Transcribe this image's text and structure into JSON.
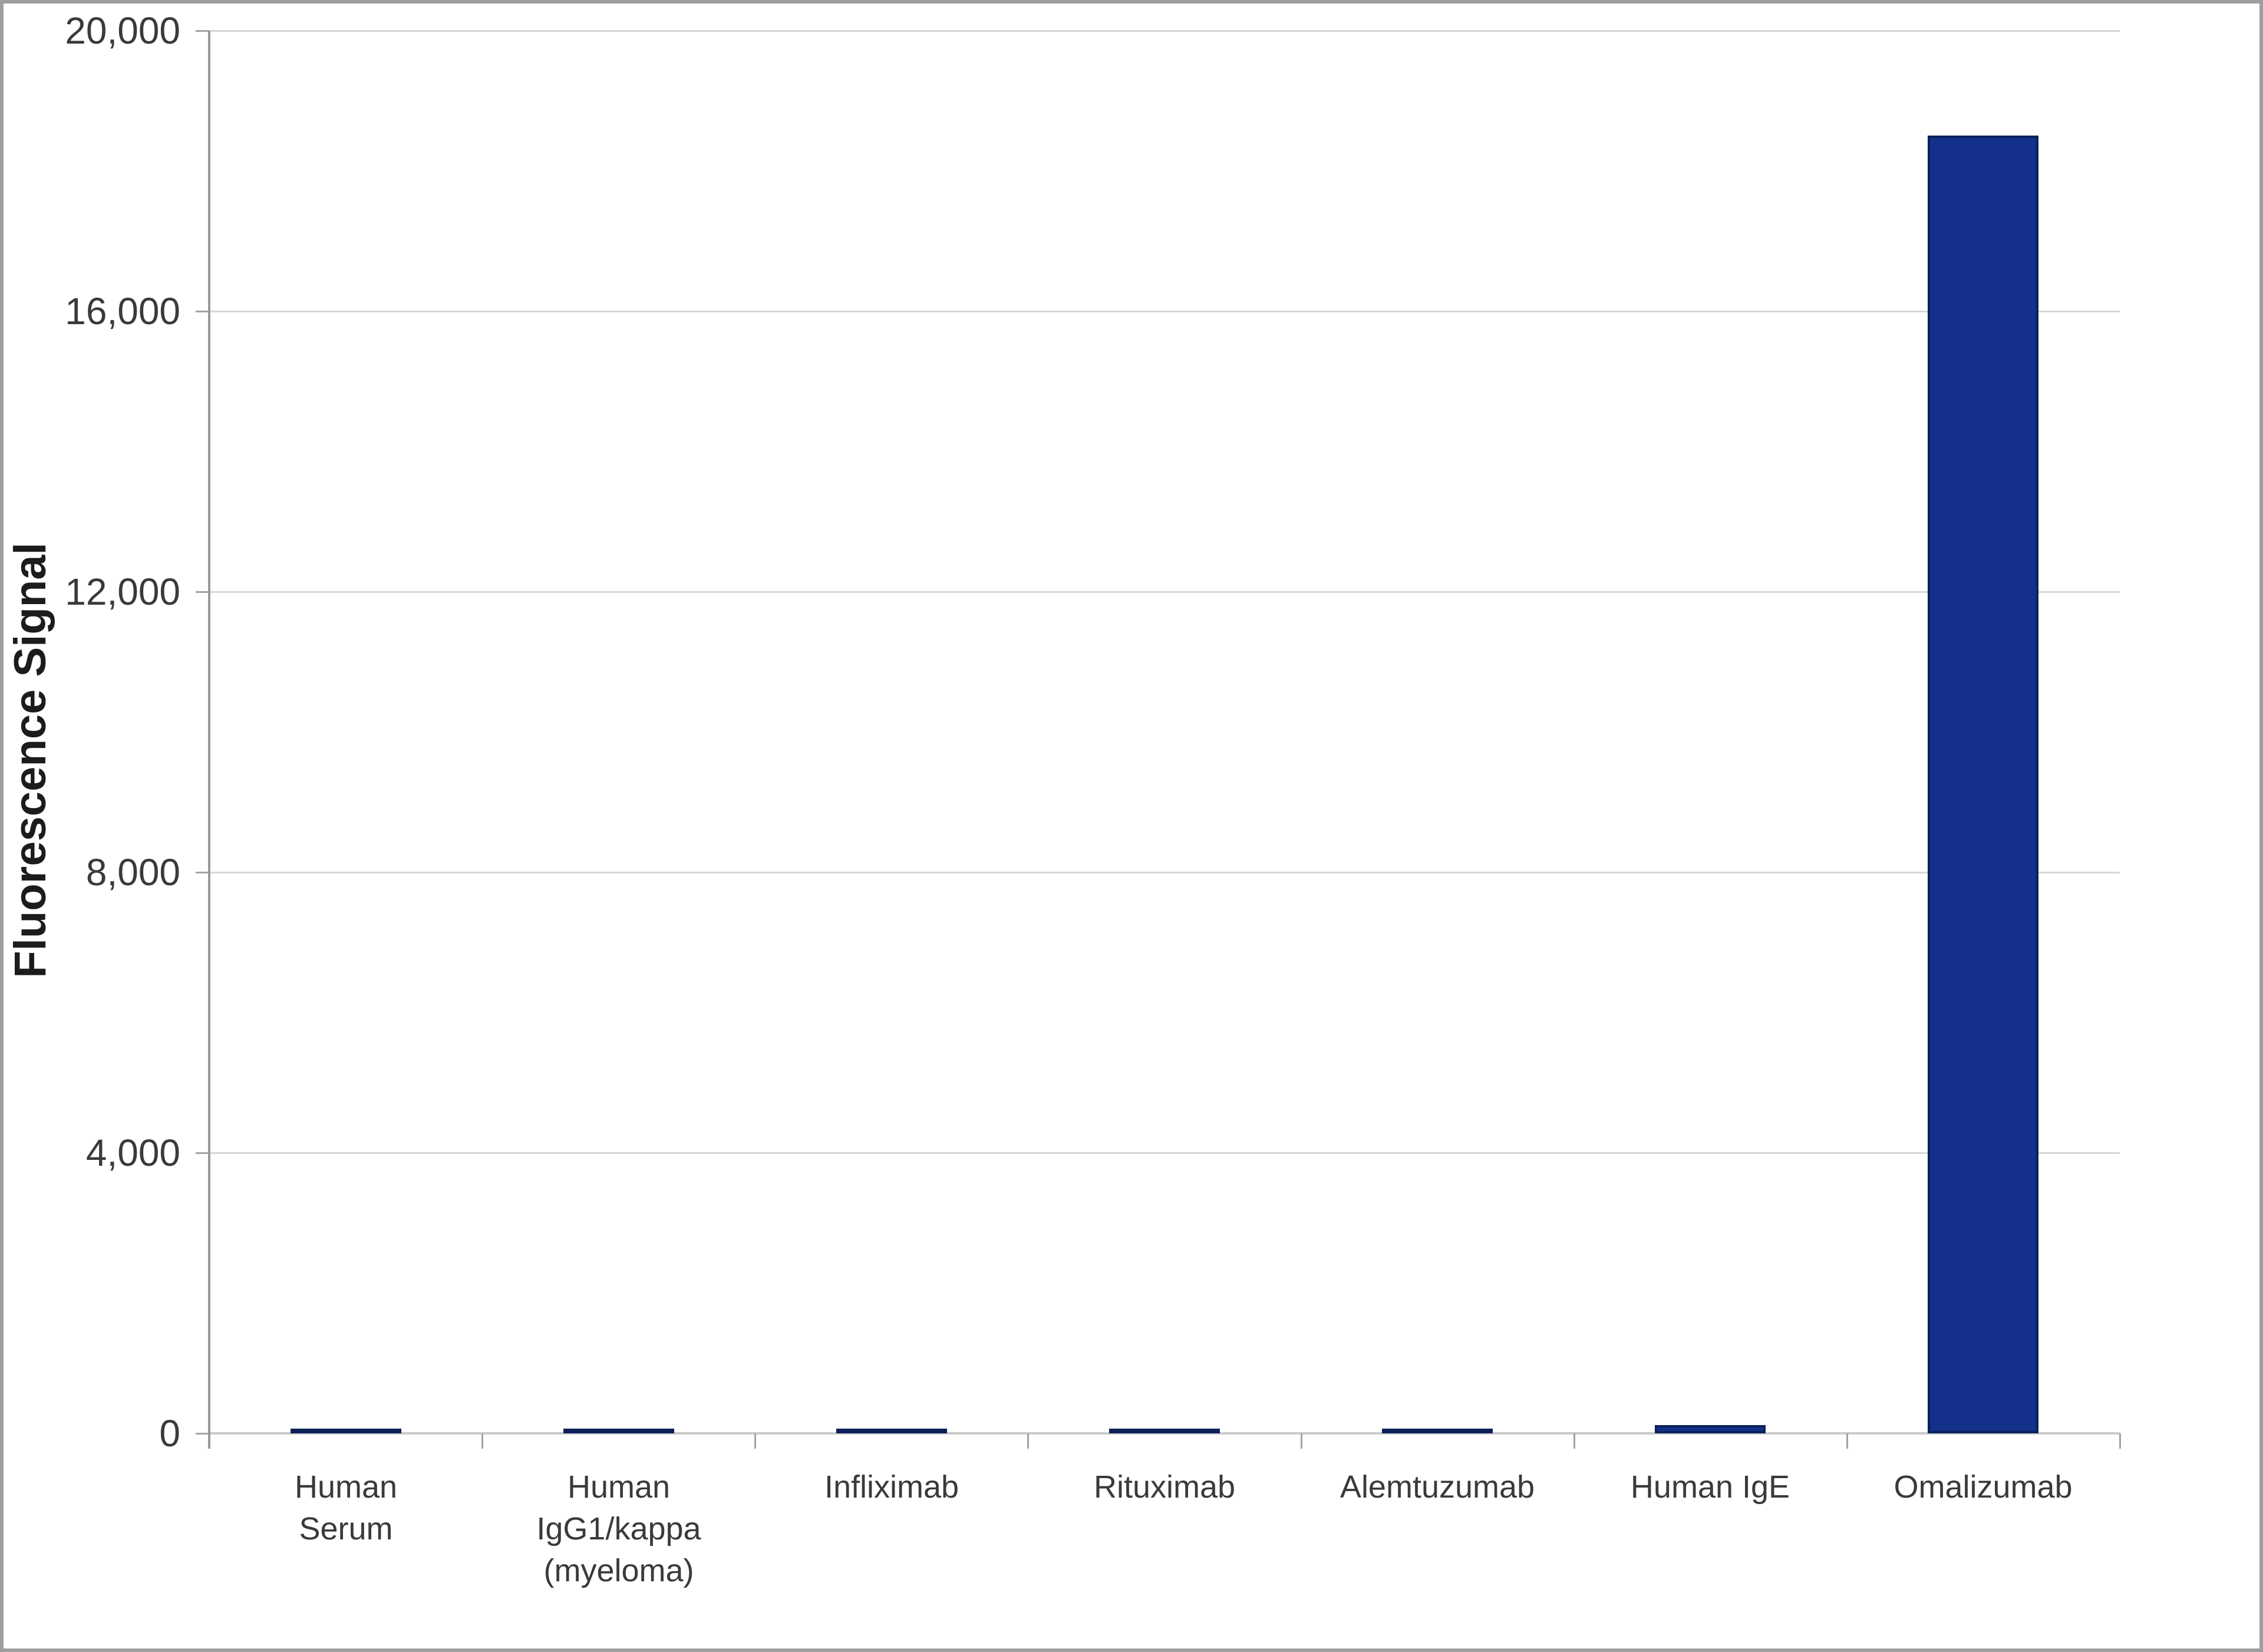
{
  "chart_data": {
    "type": "bar",
    "title": "",
    "xlabel": "",
    "ylabel": "Fluorescence Signal",
    "categories": [
      "Human Serum",
      "Human IgG1/kappa (myeloma)",
      "Infliximab",
      "Rituximab",
      "Alemtuzumab",
      "Human IgE",
      "Omalizumab"
    ],
    "category_label_lines": [
      "Human\nSerum",
      "Human\nIgG1/kappa\n(myeloma)",
      "Infliximab",
      "Rituximab",
      "Alemtuzumab",
      "Human IgE",
      "Omalizumab"
    ],
    "values": [
      60,
      60,
      70,
      70,
      70,
      120,
      18500
    ],
    "ylim": [
      0,
      20000
    ],
    "yticks": [
      0,
      4000,
      8000,
      12000,
      16000,
      20000
    ],
    "ytick_labels": [
      "0",
      "4,000",
      "8,000",
      "12,000",
      "16,000",
      "20,000"
    ],
    "grid": "horizontal",
    "legend": "none",
    "bar_color": "#13308a"
  },
  "colors": {
    "bar_fill": "#13308a",
    "bar_border": "#0c2159",
    "grid": "#d6d6d6",
    "baseline": "#c9c9c9",
    "axis": "#999999",
    "tick": "#a3a3a3",
    "label": "#3a3a3a",
    "title": "#1c1c1c",
    "frame": "#9e9e9e",
    "background": "#ffffff"
  }
}
